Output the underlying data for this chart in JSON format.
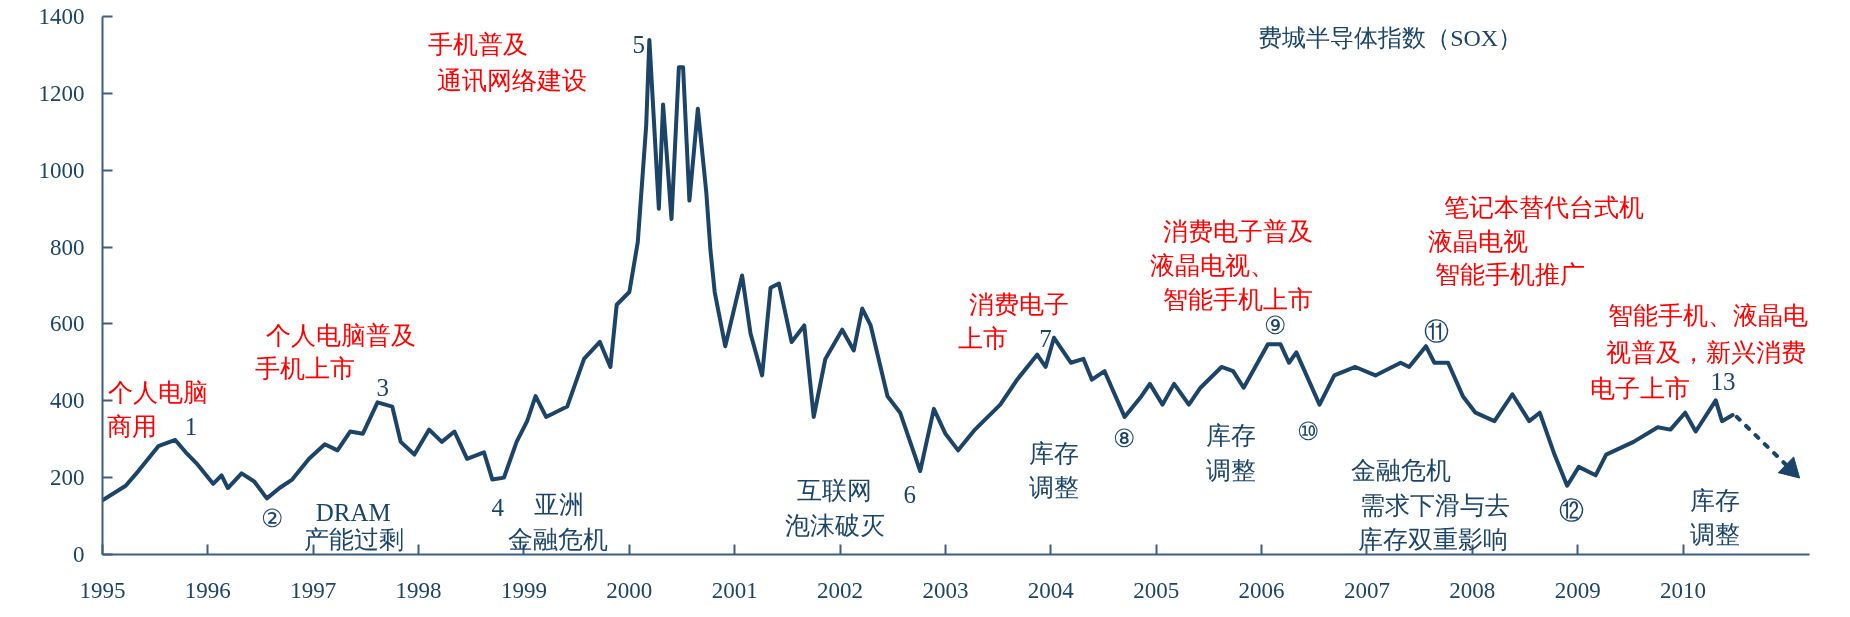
{
  "chart_data": {
    "type": "line",
    "title": "费城半导体指数（SOX）",
    "xlim": [
      1995,
      2011.2
    ],
    "xticks": [
      1995,
      1996,
      1997,
      1998,
      1999,
      2000,
      2001,
      2002,
      2003,
      2004,
      2005,
      2006,
      2007,
      2008,
      2009,
      2010
    ],
    "ylim": [
      0,
      1400
    ],
    "yticks": [
      0,
      200,
      400,
      600,
      800,
      1000,
      1200,
      1400
    ],
    "grid": false,
    "marker": "none",
    "series": [
      {
        "color": "#1b4468",
        "line_style": "solid",
        "x": [
          1995.0,
          1995.22,
          1995.34,
          1995.53,
          1995.69,
          1995.79,
          1995.89,
          1996.05,
          1996.13,
          1996.19,
          1996.32,
          1996.44,
          1996.56,
          1996.68,
          1996.8,
          1996.96,
          1997.11,
          1997.23,
          1997.35,
          1997.47,
          1997.61,
          1997.75,
          1997.83,
          1997.96,
          1998.1,
          1998.22,
          1998.34,
          1998.46,
          1998.62,
          1998.7,
          1998.81,
          1998.93,
          1999.03,
          1999.11,
          1999.21,
          1999.41,
          1999.57,
          1999.72,
          1999.82,
          1999.88,
          2000.0,
          2000.08,
          2000.16,
          2000.19,
          2000.28,
          2000.32,
          2000.4,
          2000.47,
          2000.51,
          2000.57,
          2000.65,
          2000.73,
          2000.77,
          2000.81,
          2000.91,
          2001.07,
          2001.15,
          2001.26,
          2001.34,
          2001.42,
          2001.54,
          2001.66,
          2001.75,
          2001.86,
          2002.02,
          2002.13,
          2002.21,
          2002.29,
          2002.45,
          2002.57,
          2002.76,
          2002.89,
          2003.0,
          2003.12,
          2003.28,
          2003.52,
          2003.68,
          2003.87,
          2003.95,
          2004.03,
          2004.19,
          2004.31,
          2004.39,
          2004.51,
          2004.7,
          2004.86,
          2004.94,
          2005.06,
          2005.17,
          2005.31,
          2005.42,
          2005.62,
          2005.73,
          2005.83,
          2006.06,
          2006.18,
          2006.26,
          2006.33,
          2006.55,
          2006.69,
          2006.89,
          2007.08,
          2007.32,
          2007.4,
          2007.56,
          2007.64,
          2007.77,
          2007.91,
          2008.03,
          2008.21,
          2008.38,
          2008.54,
          2008.64,
          2008.78,
          2008.9,
          2009.01,
          2009.17,
          2009.27,
          2009.53,
          2009.76,
          2009.88,
          2010.02,
          2010.12,
          2010.31,
          2010.37,
          2010.47
        ],
        "values": [
          141,
          179,
          217,
          282,
          298,
          266,
          238,
          184,
          206,
          173,
          211,
          190,
          146,
          173,
          195,
          249,
          287,
          271,
          320,
          314,
          396,
          385,
          293,
          260,
          325,
          293,
          320,
          249,
          266,
          195,
          200,
          293,
          347,
          412,
          358,
          385,
          509,
          553,
          488,
          650,
          683,
          813,
          1117,
          1339,
          900,
          1171,
          873,
          1268,
          1268,
          921,
          1160,
          943,
          791,
          683,
          542,
          726,
          575,
          466,
          694,
          705,
          553,
          596,
          358,
          509,
          585,
          531,
          640,
          596,
          412,
          369,
          217,
          379,
          314,
          271,
          325,
          390,
          455,
          520,
          488,
          564,
          499,
          509,
          455,
          477,
          358,
          412,
          444,
          390,
          444,
          390,
          434,
          488,
          477,
          434,
          547,
          547,
          499,
          526,
          390,
          466,
          488,
          466,
          499,
          488,
          542,
          499,
          499,
          412,
          369,
          347,
          417,
          347,
          369,
          260,
          179,
          228,
          206,
          260,
          293,
          331,
          325,
          369,
          320,
          401,
          347,
          363
        ]
      },
      {
        "color": "#1b4468",
        "line_style": "dotted",
        "marker": "triangle",
        "x": [
          2010.51,
          2011.02
        ],
        "values": [
          358,
          222
        ]
      }
    ],
    "annotations": [
      "个人电脑",
      "商用",
      "1",
      "个人电脑普及",
      "手机上市",
      "3",
      "②",
      "DRAM",
      "产能过剩",
      "4",
      "亚洲",
      "金融危机",
      "手机普及",
      "通讯网络建设",
      "5",
      "互联网",
      "泡沫破灭",
      "6",
      "消费电子",
      "上市",
      "7",
      "库存",
      "调整",
      "⑧",
      "消费电子普及",
      "液晶电视、",
      "智能手机上市",
      "⑨",
      "库存",
      "调整",
      "⑩",
      "笔记本替代台式机",
      "液晶电视",
      "智能手机推广",
      "⑪",
      "金融危机",
      "需求下滑与去",
      "库存双重影响",
      "⑫",
      "智能手机、液晶电",
      "视普及，新兴消费",
      "电子上市",
      "13",
      "库存",
      "调整"
    ]
  }
}
